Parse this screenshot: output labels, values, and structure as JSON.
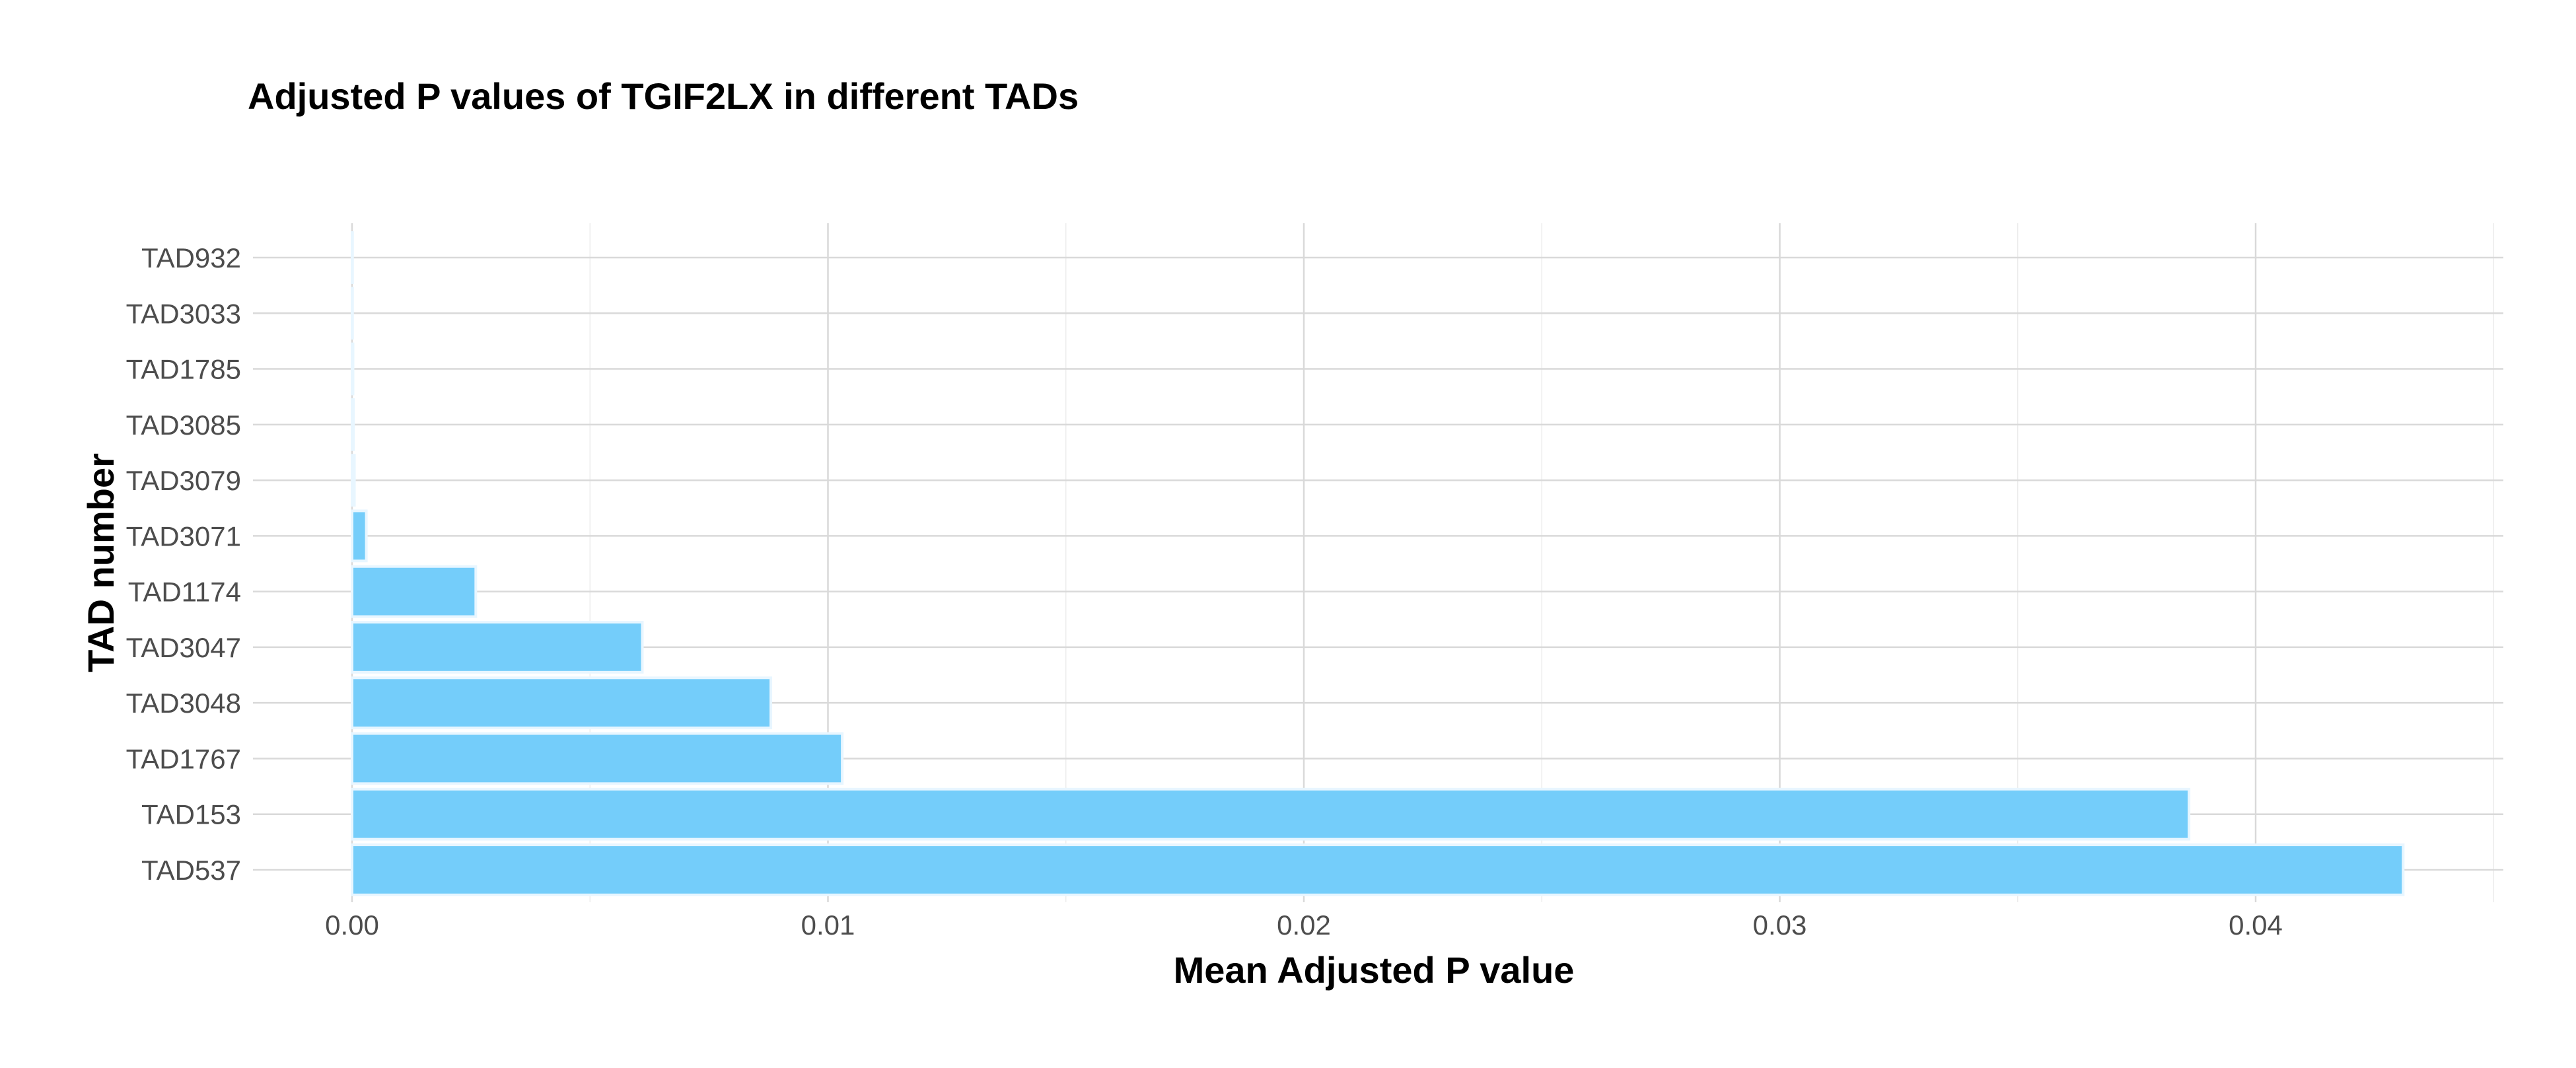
{
  "chart_data": {
    "type": "bar",
    "orientation": "horizontal",
    "title": "Adjusted P values of TGIF2LX in different TADs",
    "xlabel": "Mean Adjusted P value",
    "ylabel": "TAD number",
    "categories": [
      "TAD932",
      "TAD3033",
      "TAD1785",
      "TAD3085",
      "TAD3079",
      "TAD3071",
      "TAD1174",
      "TAD3047",
      "TAD3048",
      "TAD1767",
      "TAD153",
      "TAD537"
    ],
    "values": [
      1e-05,
      1e-05,
      2e-05,
      3e-05,
      5e-05,
      0.0003,
      0.0026,
      0.0061,
      0.0088,
      0.0103,
      0.0386,
      0.0431
    ],
    "xlim": [
      0,
      0.045
    ],
    "x_ticks": [
      0.0,
      0.01,
      0.02,
      0.03,
      0.04
    ],
    "x_tick_labels": [
      "0.00",
      "0.01",
      "0.02",
      "0.03",
      "0.04"
    ],
    "bar_color": "#74cdfa",
    "grid": true,
    "legend": "none"
  }
}
